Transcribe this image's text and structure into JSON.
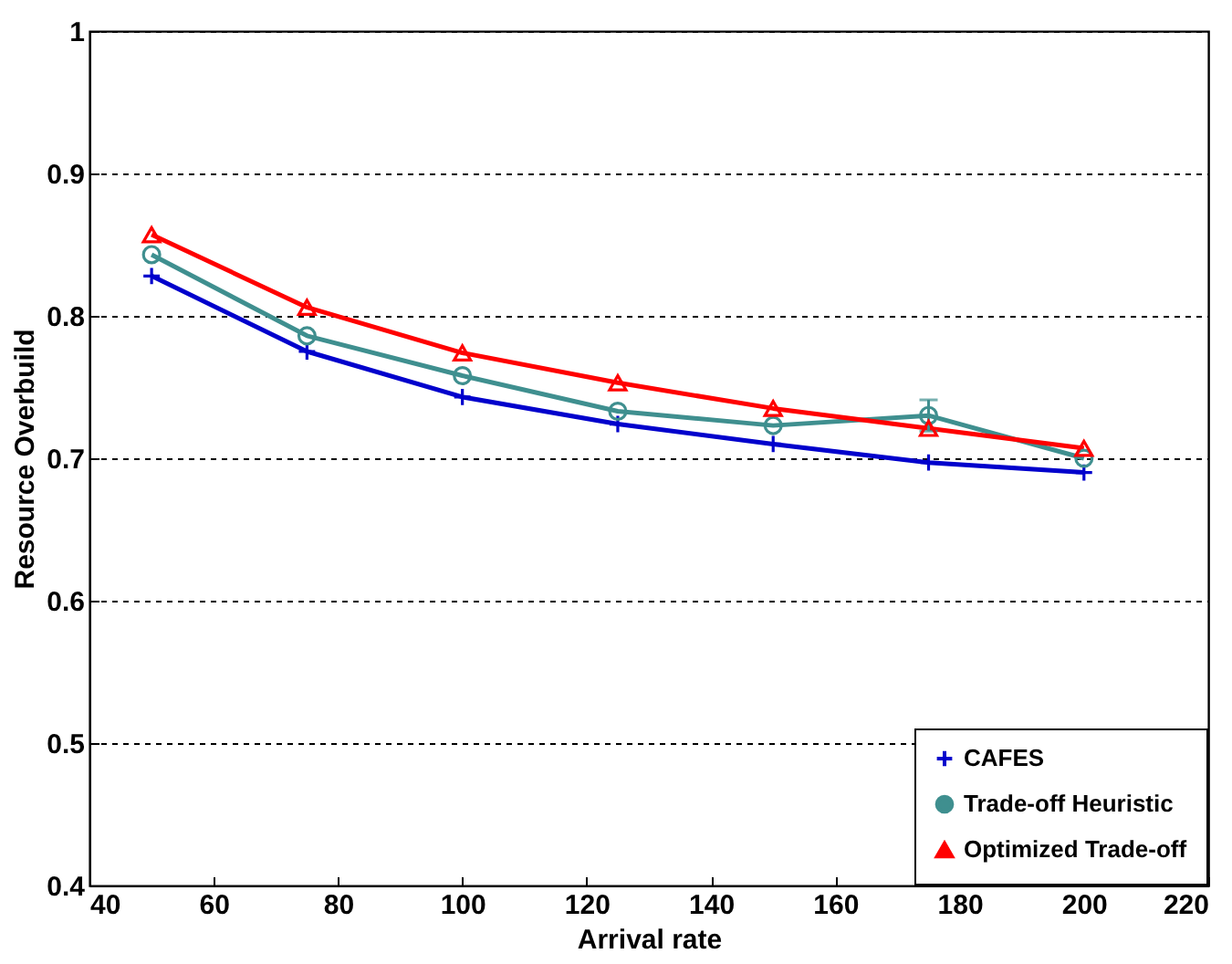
{
  "chart_data": {
    "type": "line",
    "xlabel": "Arrival rate",
    "ylabel": "Resource Overbuild",
    "x": [
      50,
      75,
      100,
      125,
      150,
      175,
      200
    ],
    "series": [
      {
        "name": "CAFES",
        "color": "#0000cc",
        "marker": "cross",
        "values": [
          0.828,
          0.775,
          0.743,
          0.724,
          0.71,
          0.697,
          0.69
        ]
      },
      {
        "name": "Trade-off Heuristic",
        "color": "#3f8f8f",
        "marker": "circle",
        "values": [
          0.843,
          0.786,
          0.758,
          0.733,
          0.723,
          0.73,
          0.7
        ],
        "errors": [
          null,
          null,
          null,
          null,
          null,
          0.011,
          null
        ]
      },
      {
        "name": "Optimized Trade-off",
        "color": "#ff0000",
        "marker": "triangle",
        "values": [
          0.857,
          0.806,
          0.774,
          0.753,
          0.735,
          0.721,
          0.707
        ]
      }
    ],
    "xlim": [
      40,
      220
    ],
    "xticks": [
      40,
      60,
      80,
      100,
      120,
      140,
      160,
      180,
      200,
      220
    ],
    "ylim": [
      0.4,
      1
    ],
    "yticks": [
      0.4,
      0.5,
      0.6,
      0.7,
      0.8,
      0.9,
      1
    ],
    "grid": "y",
    "legend": "bottom right",
    "line_style": "solid"
  }
}
